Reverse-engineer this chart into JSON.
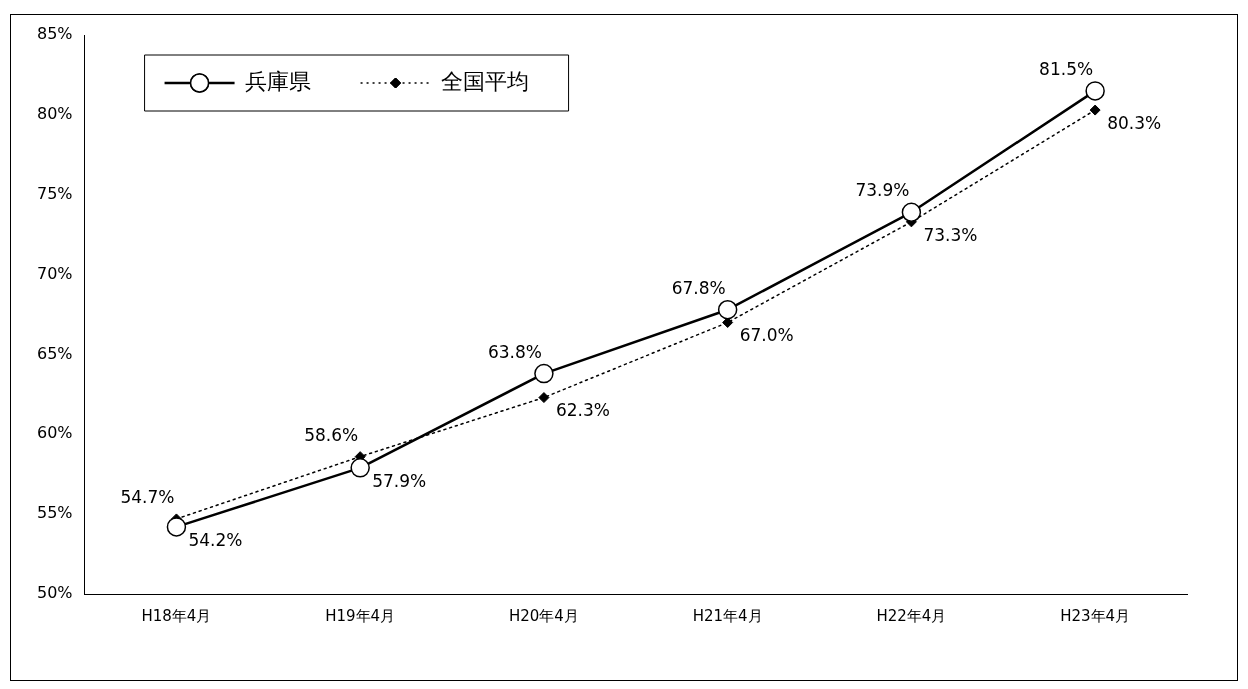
{
  "chart_data": {
    "type": "line",
    "categories": [
      "H18年4月",
      "H19年4月",
      "H20年4月",
      "H21年4月",
      "H22年4月",
      "H23年4月"
    ],
    "series": [
      {
        "name": "兵庫県",
        "color": "#000000",
        "marker": "circle",
        "line_style": "solid",
        "values": [
          54.2,
          57.9,
          63.8,
          67.8,
          73.9,
          81.5
        ],
        "value_labels": [
          "54.2%",
          "57.9%",
          "63.8%",
          "67.8%",
          "73.9%",
          "81.5%"
        ]
      },
      {
        "name": "全国平均",
        "color": "#000000",
        "marker": "diamond",
        "line_style": "dotted",
        "values": [
          54.7,
          58.6,
          62.3,
          67.0,
          73.3,
          80.3
        ],
        "value_labels": [
          "54.7%",
          "58.6%",
          "62.3%",
          "67.0%",
          "73.3%",
          "80.3%"
        ]
      }
    ],
    "ylim": [
      50,
      85
    ],
    "yticks": [
      {
        "value": 50,
        "label": "50%"
      },
      {
        "value": 55,
        "label": "55%"
      },
      {
        "value": 60,
        "label": "60%"
      },
      {
        "value": 65,
        "label": "65%"
      },
      {
        "value": 70,
        "label": "70%"
      },
      {
        "value": 75,
        "label": "75%"
      },
      {
        "value": 80,
        "label": "80%"
      },
      {
        "value": 85,
        "label": "85%"
      }
    ],
    "grid": false,
    "legend": "top left"
  }
}
